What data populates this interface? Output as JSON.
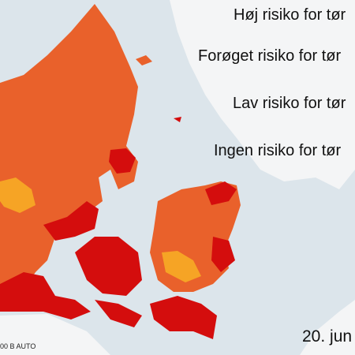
{
  "legend": {
    "items": [
      "Høj risiko for tør",
      "Forøget risiko for tør",
      "Lav risiko for tør",
      "Ingen risiko for tør"
    ]
  },
  "date": "20. jun",
  "credit": "00 B AUTO"
}
